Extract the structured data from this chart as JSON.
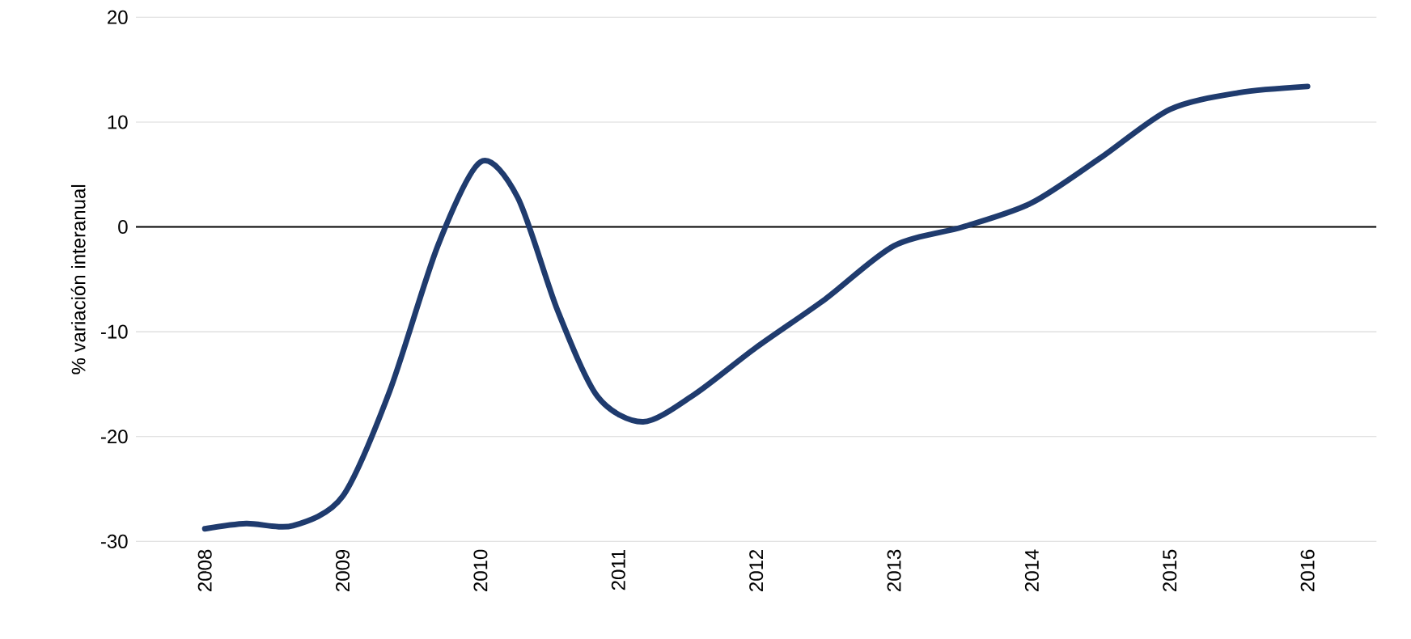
{
  "chart_data": {
    "type": "line",
    "ylabel": "% variación interanual",
    "x": [
      2008,
      2008.3,
      2008.64,
      2009,
      2009.34,
      2009.69,
      2010,
      2010.27,
      2010.56,
      2010.85,
      2011.18,
      2011.55,
      2012,
      2012.5,
      2013,
      2013.5,
      2014,
      2014.5,
      2015,
      2015.5,
      2016
    ],
    "series": [
      {
        "color": "#1f3b6e",
        "values": [
          -28.8,
          -28.3,
          -28.5,
          -25.7,
          -15.7,
          -1.8,
          6.2,
          2.8,
          -8,
          -16.2,
          -18.6,
          -16,
          -11.5,
          -6.9,
          -1.8,
          0,
          2.3,
          6.6,
          11.2,
          12.8,
          13.4
        ]
      }
    ],
    "xlim": [
      2007.5,
      2016.5
    ],
    "xticks": [
      2008,
      2009,
      2010,
      2011,
      2012,
      2013,
      2014,
      2015,
      2016
    ],
    "ylim": [
      -30,
      20
    ],
    "yticks": [
      -30,
      -20,
      -10,
      0,
      10,
      20
    ],
    "ref_lines": [
      {
        "axis": "y",
        "value": 0,
        "color": "#000000"
      }
    ],
    "grid": "y"
  }
}
